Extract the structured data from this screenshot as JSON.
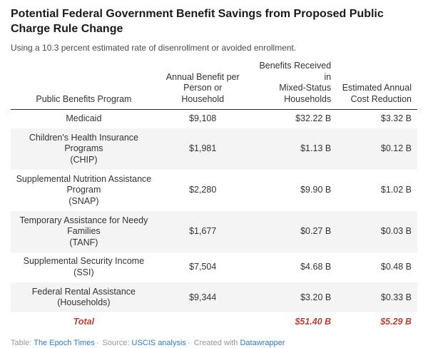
{
  "title": "Potential Federal Government Benefit Savings from Proposed Public Charge Rule Change",
  "subtitle": "Using a 10.3 percent estimated rate of disenrollment or avoided enrollment.",
  "colors": {
    "title_text": "#1a1a1a",
    "body_text": "#333333",
    "total_accent_red": "#c03d33",
    "stripe_gray": "#f4f4f4",
    "header_rule": "#2e2e2e",
    "footer_gray": "#979797",
    "link_blue": "#2e7cbe"
  },
  "chart_data": {
    "type": "table",
    "title": "Potential Federal Government Benefit Savings from Proposed Public Charge Rule Change",
    "subtitle": "Using a 10.3 percent estimated rate of disenrollment or avoided enrollment.",
    "headers": [
      {
        "label": "Public Benefits Program",
        "align": "center",
        "lines": [
          "Public Benefits Program"
        ]
      },
      {
        "label": "Annual Benefit per Person or Household",
        "align": "center",
        "lines": [
          "Annual Benefit per",
          "Person or",
          "Household"
        ]
      },
      {
        "label": "Benefits Received in Mixed-Status Households",
        "align": "right",
        "lines": [
          "Benefits Received in",
          "Mixed-Status",
          "Households"
        ]
      },
      {
        "label": "Estimated Annual Cost Reduction",
        "align": "right",
        "lines": [
          "Estimated Annual",
          "Cost Reduction"
        ]
      }
    ],
    "rows": [
      {
        "program": "Medicaid",
        "program_lines": [
          "Medicaid"
        ],
        "annual_benefit": "$9,108",
        "benefits_received": "$32.22 B",
        "cost_reduction": "$3.32 B"
      },
      {
        "program": "Children's Health Insurance Programs (CHIP)",
        "program_lines": [
          "Children's Health Insurance Programs",
          "(CHIP)"
        ],
        "annual_benefit": "$1,981",
        "benefits_received": "$1.13 B",
        "cost_reduction": "$0.12 B"
      },
      {
        "program": "Supplemental Nutrition Assistance Program (SNAP)",
        "program_lines": [
          "Supplemental Nutrition Assistance Program",
          "(SNAP)"
        ],
        "annual_benefit": "$2,280",
        "benefits_received": "$9.90 B",
        "cost_reduction": "$1.02 B"
      },
      {
        "program": "Temporary Assistance for Needy Families (TANF)",
        "program_lines": [
          "Temporary Assistance for Needy Families",
          "(TANF)"
        ],
        "annual_benefit": "$1,677",
        "benefits_received": "$0.27 B",
        "cost_reduction": "$0.03 B"
      },
      {
        "program": "Supplemental Security Income (SSI)",
        "program_lines": [
          "Supplemental Security Income (SSI)"
        ],
        "annual_benefit": "$7,504",
        "benefits_received": "$4.68 B",
        "cost_reduction": "$0.48 B"
      },
      {
        "program": "Federal Rental Assistance (Households)",
        "program_lines": [
          "Federal Rental Assistance (Households)"
        ],
        "annual_benefit": "$9,344",
        "benefits_received": "$3.20 B",
        "cost_reduction": "$0.33 B"
      }
    ],
    "total": {
      "label": "Total",
      "annual_benefit": "",
      "benefits_received": "$51.40 B",
      "cost_reduction": "$5.29 B"
    }
  },
  "footer": {
    "table_label": "Table: ",
    "table_credit": "The Epoch Times",
    "separator": "·",
    "source_label": "Source: ",
    "source_credit": "USCIS analysis",
    "created_label": "Created with ",
    "created_credit": "Datawrapper"
  }
}
